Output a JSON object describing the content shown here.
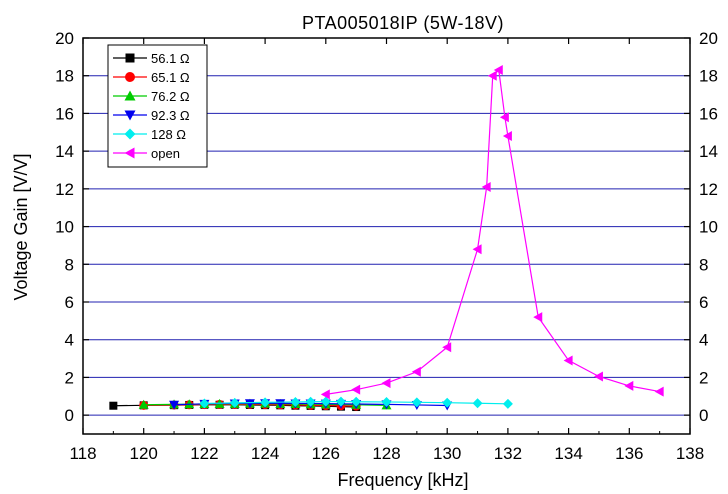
{
  "chart_data": {
    "type": "line",
    "title": "PTA005018IP (5W-18V)",
    "xlabel": "Frequency [kHz]",
    "ylabel": "Voltage Gain [V/V]",
    "xlim": [
      118,
      138
    ],
    "ylim": [
      -1,
      20
    ],
    "x_ticks": [
      118,
      120,
      122,
      124,
      126,
      128,
      130,
      132,
      134,
      136,
      138
    ],
    "y_ticks": [
      0,
      2,
      4,
      6,
      8,
      10,
      12,
      14,
      16,
      18,
      20
    ],
    "grid": "horizontal",
    "grid_color": "#2020b0",
    "legend_position": "top-left",
    "right_axis_mirrored": true,
    "series": [
      {
        "name": "56.1 Ω",
        "color": "#000000",
        "marker": "square",
        "x": [
          119,
          120,
          121,
          121.5,
          122,
          122.5,
          123,
          123.5,
          124,
          124.5,
          125,
          125.5,
          126,
          126.5,
          127
        ],
        "y": [
          0.5,
          0.52,
          0.53,
          0.54,
          0.55,
          0.55,
          0.55,
          0.54,
          0.53,
          0.52,
          0.5,
          0.49,
          0.47,
          0.45,
          0.43
        ]
      },
      {
        "name": "65.1 Ω",
        "color": "#ff0000",
        "marker": "circle",
        "x": [
          120,
          121,
          121.5,
          122,
          122.5,
          123,
          123.5,
          124,
          124.5,
          125,
          125.5,
          126,
          126.5,
          127
        ],
        "y": [
          0.52,
          0.54,
          0.55,
          0.56,
          0.57,
          0.57,
          0.57,
          0.56,
          0.55,
          0.54,
          0.52,
          0.51,
          0.5,
          0.48
        ]
      },
      {
        "name": "76.2 Ω",
        "color": "#00cc00",
        "marker": "triangle-up",
        "x": [
          120,
          121,
          121.5,
          122,
          122.5,
          123,
          123.5,
          124,
          124.5,
          125,
          125.5,
          126,
          127,
          128
        ],
        "y": [
          0.55,
          0.57,
          0.58,
          0.59,
          0.6,
          0.6,
          0.61,
          0.61,
          0.6,
          0.59,
          0.58,
          0.57,
          0.55,
          0.52
        ]
      },
      {
        "name": "92.3 Ω",
        "color": "#0000ee",
        "marker": "triangle-down",
        "x": [
          121,
          122,
          123,
          123.5,
          124,
          124.5,
          125,
          125.5,
          126,
          126.5,
          127,
          128,
          129,
          130
        ],
        "y": [
          0.55,
          0.6,
          0.62,
          0.63,
          0.63,
          0.63,
          0.62,
          0.62,
          0.61,
          0.6,
          0.59,
          0.57,
          0.54,
          0.51
        ]
      },
      {
        "name": "128 Ω",
        "color": "#00eeee",
        "marker": "diamond",
        "x": [
          122,
          123,
          124,
          125,
          125.5,
          126,
          126.5,
          127,
          128,
          129,
          130,
          131,
          132
        ],
        "y": [
          0.62,
          0.65,
          0.68,
          0.7,
          0.71,
          0.72,
          0.72,
          0.71,
          0.7,
          0.68,
          0.66,
          0.63,
          0.6
        ]
      },
      {
        "name": "open",
        "color": "#ff00ff",
        "marker": "triangle-left",
        "x": [
          126,
          127,
          128,
          129,
          130,
          131,
          131.3,
          131.5,
          131.7,
          131.9,
          132,
          133,
          134,
          135,
          136,
          137
        ],
        "y": [
          1.1,
          1.35,
          1.7,
          2.3,
          3.6,
          8.8,
          12.1,
          18.0,
          18.3,
          15.8,
          14.8,
          5.2,
          2.9,
          2.05,
          1.55,
          1.25
        ]
      }
    ]
  }
}
